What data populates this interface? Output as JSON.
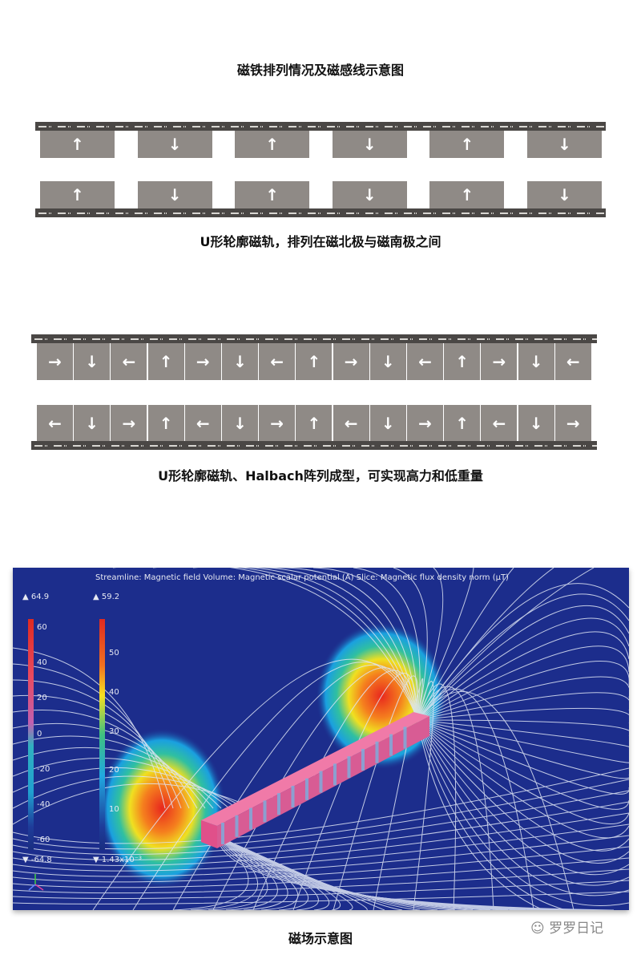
{
  "title": "磁铁排列情况及磁感线示意图",
  "section1": {
    "caption": "U形轮廓磁轨，排列在磁北极与磁南极之间",
    "top_row": [
      "up",
      "down",
      "up",
      "down",
      "up",
      "down"
    ],
    "bottom_row": [
      "up",
      "down",
      "up",
      "down",
      "up",
      "down"
    ]
  },
  "section2": {
    "caption": "U形轮廓磁轨、Halbach阵列成型，可实现高力和低重量",
    "top_row": [
      "right",
      "down",
      "left",
      "up",
      "right",
      "down",
      "left",
      "up",
      "right",
      "down",
      "left",
      "up",
      "right",
      "down",
      "left"
    ],
    "bottom_row": [
      "left",
      "down",
      "right",
      "up",
      "left",
      "down",
      "right",
      "up",
      "left",
      "down",
      "right",
      "up",
      "left",
      "down",
      "right"
    ]
  },
  "simulation": {
    "header": "Streamline: Magnetic field  Volume: Magnetic scalar potential (A)  Slice: Magnetic flux density norm (μT)",
    "legend1": {
      "max": "▲ 64.9",
      "min": "▼ -64.8",
      "ticks": [
        "60",
        "40",
        "20",
        "0",
        "-20",
        "-40",
        "-60"
      ]
    },
    "legend2": {
      "max": "▲ 59.2",
      "min": "▼ 1.43x10⁻³",
      "ticks": [
        "50",
        "40",
        "30",
        "20",
        "10"
      ]
    },
    "background_color": "#1c2d8c"
  },
  "caption3": "磁场示意图",
  "watermark": "罗罗日记"
}
